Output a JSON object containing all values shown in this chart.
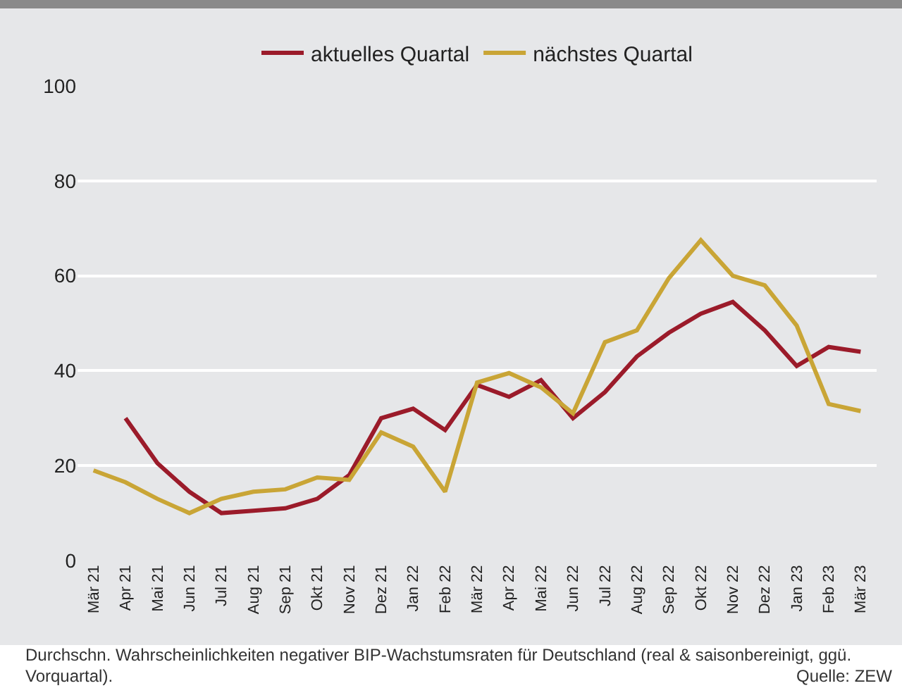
{
  "chart_data": {
    "type": "line",
    "categories": [
      "Mär 21",
      "Apr 21",
      "Mai 21",
      "Jun 21",
      "Jul 21",
      "Aug 21",
      "Sep 21",
      "Okt 21",
      "Nov 21",
      "Dez 21",
      "Jan 22",
      "Feb 22",
      "Mär 22",
      "Apr 22",
      "Mai 22",
      "Jun 22",
      "Jul 22",
      "Aug 22",
      "Sep 22",
      "Okt 22",
      "Nov 22",
      "Dez 22",
      "Jan 23",
      "Feb 23",
      "Mär 23"
    ],
    "series": [
      {
        "name": "aktuelles Quartal",
        "color": "#9b1b2a",
        "values": [
          null,
          30,
          20.5,
          14.5,
          10,
          10.5,
          11,
          13,
          18,
          30,
          32,
          27.5,
          37,
          34.5,
          38,
          30,
          35.5,
          43,
          48,
          52,
          54.5,
          48.5,
          41,
          45,
          44
        ]
      },
      {
        "name": "nächstes Quartal",
        "color": "#c9a536",
        "values": [
          19,
          16.5,
          13,
          10,
          13,
          14.5,
          15,
          17.5,
          17,
          27,
          24,
          14.5,
          37.5,
          39.5,
          36.5,
          31,
          46,
          48.5,
          59.5,
          67.5,
          60,
          58,
          49.5,
          33,
          31.5
        ]
      }
    ],
    "ylim": [
      0,
      100
    ],
    "yticks": [
      0,
      20,
      40,
      60,
      80,
      100
    ],
    "grid": "y",
    "legend": "top",
    "marker": "none",
    "line_style": "solid",
    "annotations": [
      "Durchschn. Wahrscheinlichkeiten negativer BIP-Wachstumsraten für Deutschland (real & saisonbereinigt, ggü. Vorquartal).",
      "Quelle: ZEW"
    ]
  }
}
